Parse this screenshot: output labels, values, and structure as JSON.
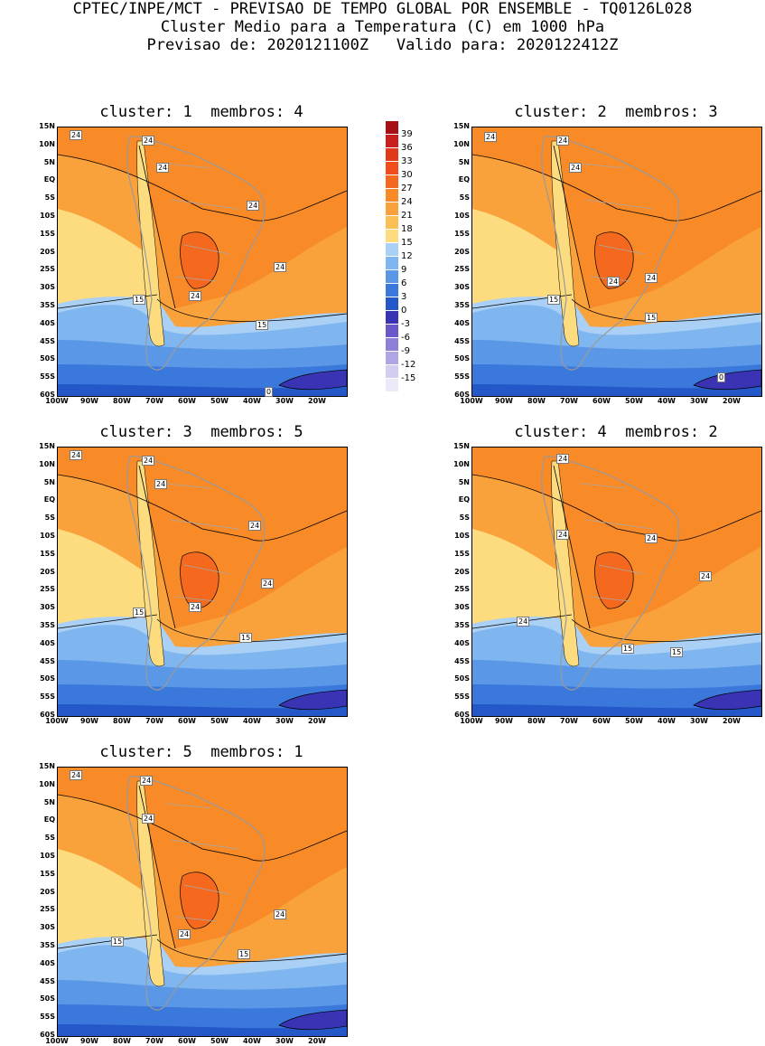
{
  "header": {
    "line1": "CPTEC/INPE/MCT - PREVISAO DE TEMPO GLOBAL POR ENSEMBLE - TQ0126L028",
    "line2": "Cluster Medio para a Temperatura (C) em 1000 hPa",
    "line3": "Previsao de: 2020121100Z   Valido para: 2020122412Z"
  },
  "panels": [
    {
      "title": "cluster: 1  membros: 4",
      "contour_labels": [
        "24",
        "24",
        "24",
        "24",
        "24",
        "24",
        "15",
        "15",
        "0"
      ]
    },
    {
      "title": "cluster: 2  membros: 3",
      "contour_labels": [
        "24",
        "24",
        "24",
        "24",
        "24",
        "15",
        "15",
        "0"
      ]
    },
    {
      "title": "cluster: 3  membros: 5",
      "contour_labels": [
        "24",
        "24",
        "24",
        "24",
        "24",
        "24",
        "15",
        "15"
      ]
    },
    {
      "title": "cluster: 4  membros: 2",
      "contour_labels": [
        "24",
        "24",
        "24",
        "24",
        "24",
        "15",
        "15"
      ]
    },
    {
      "title": "cluster: 5  membros: 1",
      "contour_labels": [
        "24",
        "24",
        "24",
        "24",
        "24",
        "15",
        "15"
      ]
    }
  ],
  "lat_labels": [
    "15N",
    "10N",
    "5N",
    "EQ",
    "5S",
    "10S",
    "15S",
    "20S",
    "25S",
    "30S",
    "35S",
    "40S",
    "45S",
    "50S",
    "55S",
    "60S"
  ],
  "lon_labels": [
    "100W",
    "90W",
    "80W",
    "70W",
    "60W",
    "50W",
    "40W",
    "30W",
    "20W"
  ],
  "colorbar": {
    "labels": [
      "39",
      "36",
      "33",
      "30",
      "27",
      "24",
      "21",
      "18",
      "15",
      "12",
      "9",
      "6",
      "3",
      "0",
      "-3",
      "-6",
      "-9",
      "-12",
      "-15"
    ],
    "colors": [
      "#a50f15",
      "#c81e1e",
      "#e03a1c",
      "#f04c1c",
      "#f5691e",
      "#f88a28",
      "#f9a13a",
      "#fbc055",
      "#fddc80",
      "#aad0f5",
      "#7fb6f0",
      "#5a97e6",
      "#3a78db",
      "#2457c8",
      "#3a34b5",
      "#6a58c8",
      "#8e80d8",
      "#b0a5e4",
      "#d4cdf0",
      "#ece9f8"
    ]
  }
}
